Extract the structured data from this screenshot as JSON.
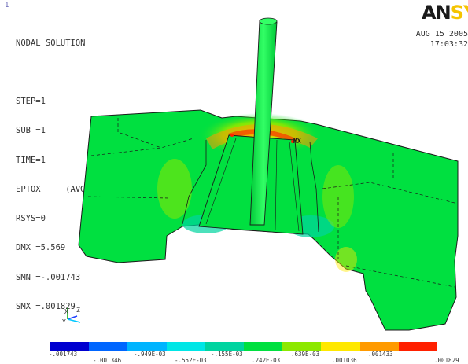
{
  "window_index": "1",
  "info_lines": [
    "NODAL SOLUTION",
    "",
    "STEP=1",
    "SUB =1",
    "TIME=1",
    "EPTOX     (AVG)",
    "RSYS=0",
    "DMX =5.569",
    "SMN =-.001743",
    "SMX =.001829"
  ],
  "logo": {
    "prefix": "AN",
    "suffix": "SYS"
  },
  "date": "AUG 15 2005",
  "time": "17:03:32",
  "max_marker": "MX",
  "triad": {
    "x": "X",
    "z": "Z",
    "y": "Y"
  },
  "legend": {
    "colors": [
      "#0000d0",
      "#0066ff",
      "#00b4ff",
      "#00e6e6",
      "#00d4a0",
      "#00e040",
      "#8ce800",
      "#ffe800",
      "#ff9a00",
      "#ff2000"
    ],
    "labels_top": [
      "-.001743",
      "-.949E-03",
      "-.155E-03",
      ".639E-03",
      ".001433"
    ],
    "labels_bottom": [
      "-.001346",
      "-.552E-03",
      ".242E-03",
      ".001036",
      ".001829"
    ]
  }
}
